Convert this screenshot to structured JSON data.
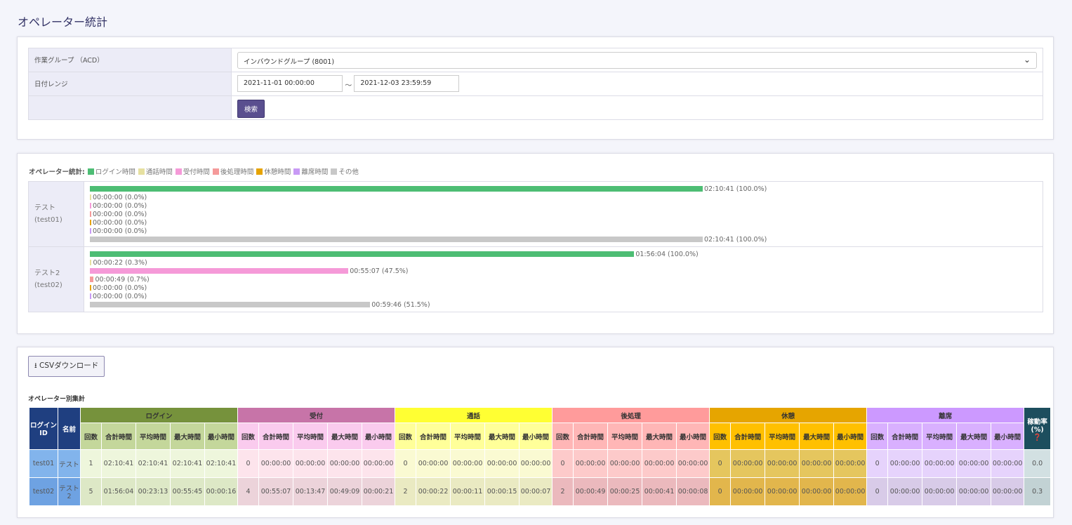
{
  "title": "オペレーター統計",
  "filters": {
    "group_label": "作業グループ （ACD）",
    "group_value": "インバウンドグループ (8001)",
    "date_label": "日付レンジ",
    "date_from": "2021-11-01 00:00:00",
    "date_sep": "～",
    "date_to": "2021-12-03 23:59:59",
    "search_label": "検索"
  },
  "chart": {
    "legend_title": "オペレーター統計:",
    "legend": [
      {
        "label": "ログイン時間",
        "color": "#4dbd74"
      },
      {
        "label": "通話時間",
        "color": "#e6e0a0"
      },
      {
        "label": "受付時間",
        "color": "#f59ad8"
      },
      {
        "label": "後処理時間",
        "color": "#f59a9a"
      },
      {
        "label": "休憩時間",
        "color": "#e6a300"
      },
      {
        "label": "離席時間",
        "color": "#c89af5"
      },
      {
        "label": "その他",
        "color": "#c8c8c8"
      }
    ],
    "operators": [
      {
        "name": "テスト",
        "id": "(test01)",
        "bars": [
          {
            "time": "02:10:41",
            "pct": "100.0%"
          },
          {
            "time": "00:00:00",
            "pct": "0.0%"
          },
          {
            "time": "00:00:00",
            "pct": "0.0%"
          },
          {
            "time": "00:00:00",
            "pct": "0.0%"
          },
          {
            "time": "00:00:00",
            "pct": "0.0%"
          },
          {
            "time": "00:00:00",
            "pct": "0.0%"
          },
          {
            "time": "02:10:41",
            "pct": "100.0%"
          }
        ]
      },
      {
        "name": "テスト2",
        "id": "(test02)",
        "bars": [
          {
            "time": "01:56:04",
            "pct": "100.0%"
          },
          {
            "time": "00:00:22",
            "pct": "0.3%"
          },
          {
            "time": "00:55:07",
            "pct": "47.5%"
          },
          {
            "time": "00:00:49",
            "pct": "0.7%"
          },
          {
            "time": "00:00:00",
            "pct": "0.0%"
          },
          {
            "time": "00:00:00",
            "pct": "0.0%"
          },
          {
            "time": "00:59:46",
            "pct": "51.5%"
          }
        ]
      }
    ]
  },
  "summary": {
    "csv_label": "CSVダウンロード",
    "subtitle": "オペレーター別集計",
    "col_id": "ログインID",
    "col_name": "名前",
    "col_rate": "稼動率(%)",
    "groups": [
      {
        "label": "ログイン",
        "head": "#76923c",
        "sub": "#c4d79b",
        "d": [
          "#eef6dc",
          "#dde8c6"
        ],
        "cols": [
          "回数",
          "合計時間",
          "平均時間",
          "最大時間",
          "最小時間"
        ]
      },
      {
        "label": "受付",
        "head": "#c774a8",
        "sub": "#facbee",
        "d": [
          "#fde4ec",
          "#ecd3da"
        ]
      },
      {
        "label": "通話",
        "head": "#ffff33",
        "sub": "#ffff99",
        "d": [
          "#fafad2",
          "#eaeac2"
        ]
      },
      {
        "label": "後処理",
        "head": "#ff9b9b",
        "sub": "#ffb6b6",
        "d": [
          "#fdcaca",
          "#ebb9bd"
        ]
      },
      {
        "label": "休憩",
        "head": "#e6a500",
        "sub": "#ffc000",
        "d": [
          "#e5c65e",
          "#e2b64c"
        ]
      },
      {
        "label": "離席",
        "head": "#cc99ff",
        "sub": "#d9b0ff",
        "d": [
          "#e6d3fc",
          "#d8cbe8"
        ]
      }
    ],
    "rows": [
      {
        "id": "test01",
        "name": "テスト",
        "vals": [
          [
            "1",
            "02:10:41",
            "02:10:41",
            "02:10:41",
            "02:10:41"
          ],
          [
            "0",
            "00:00:00",
            "00:00:00",
            "00:00:00",
            "00:00:00"
          ],
          [
            "0",
            "00:00:00",
            "00:00:00",
            "00:00:00",
            "00:00:00"
          ],
          [
            "0",
            "00:00:00",
            "00:00:00",
            "00:00:00",
            "00:00:00"
          ],
          [
            "0",
            "00:00:00",
            "00:00:00",
            "00:00:00",
            "00:00:00"
          ],
          [
            "0",
            "00:00:00",
            "00:00:00",
            "00:00:00",
            "00:00:00"
          ]
        ],
        "rate": "0.0"
      },
      {
        "id": "test02",
        "name": "テスト2",
        "vals": [
          [
            "5",
            "01:56:04",
            "00:23:13",
            "00:55:45",
            "00:00:16"
          ],
          [
            "4",
            "00:55:07",
            "00:13:47",
            "00:49:09",
            "00:00:21"
          ],
          [
            "2",
            "00:00:22",
            "00:00:11",
            "00:00:15",
            "00:00:07"
          ],
          [
            "2",
            "00:00:49",
            "00:00:25",
            "00:00:41",
            "00:00:08"
          ],
          [
            "0",
            "00:00:00",
            "00:00:00",
            "00:00:00",
            "00:00:00"
          ],
          [
            "0",
            "00:00:00",
            "00:00:00",
            "00:00:00",
            "00:00:00"
          ]
        ],
        "rate": "0.3"
      }
    ]
  }
}
